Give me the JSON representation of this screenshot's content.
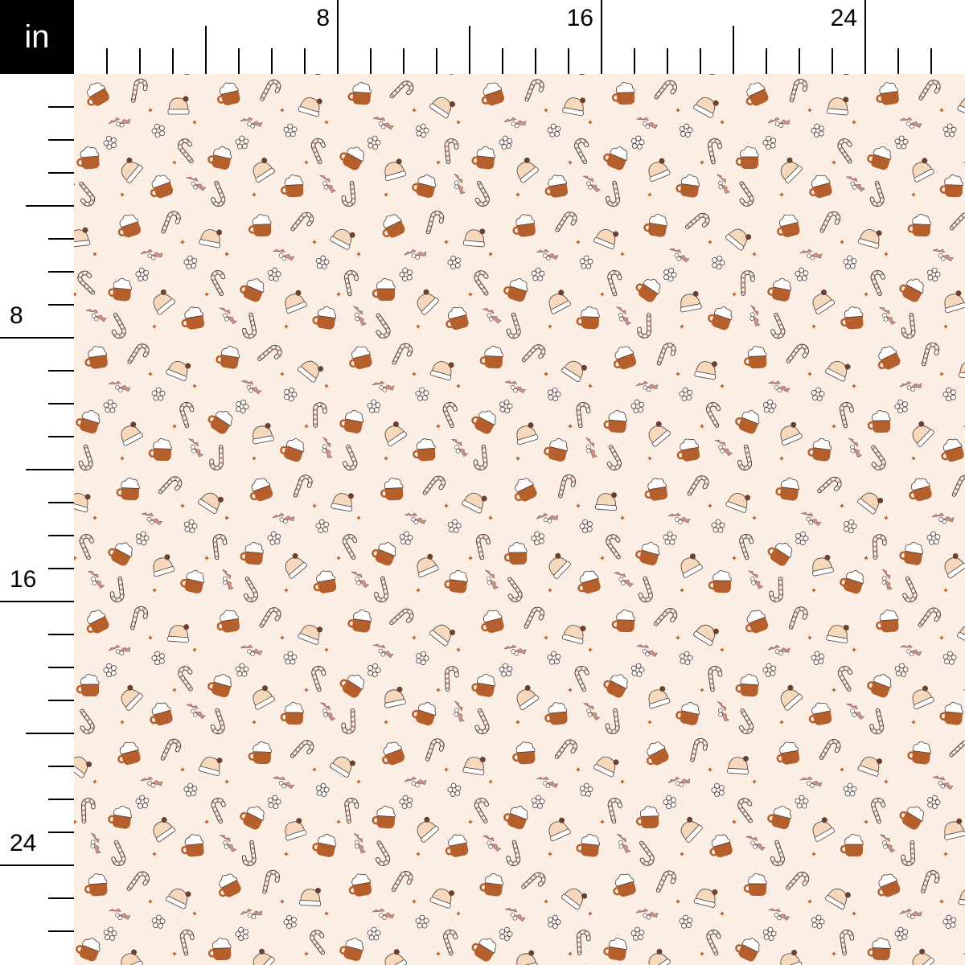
{
  "unit_label": "in",
  "ruler": {
    "top_labels": [
      "8",
      "16",
      "24"
    ],
    "left_labels": [
      "8",
      "16",
      "24"
    ],
    "pixels_per_unit_note": ""
  },
  "fabric": {
    "background_color": "#fbefe5",
    "motif_colors": {
      "mug": "#b5602c",
      "cane_stripe": "#c9a08c",
      "hat": "#f6d9bd",
      "holly": "#c9958a",
      "outline": "#4a3a35"
    },
    "motifs": [
      "hot-cocoa-mug",
      "candy-cane",
      "santa-hat",
      "holly-leaves",
      "snowflake",
      "star-sprinkles"
    ]
  }
}
